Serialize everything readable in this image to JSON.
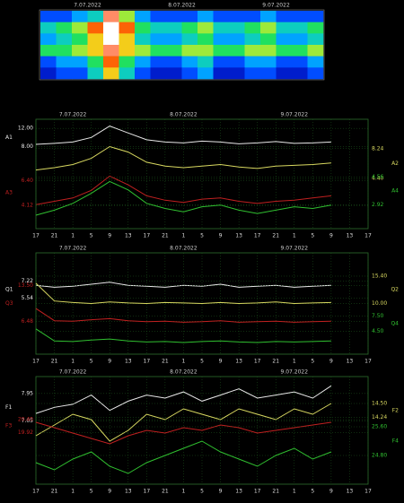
{
  "chart_data": [
    {
      "type": "heatmap",
      "dates": [
        "7.07.2022",
        "8.07.2022",
        "9.07.2022"
      ],
      "zlim": [
        0,
        10
      ],
      "colors": [
        "#000080",
        "#0030ff",
        "#00c0ff",
        "#20e060",
        "#f0f020",
        "#ff4000",
        "#ffffff"
      ],
      "z": [
        [
          2,
          2,
          3,
          4,
          9,
          6,
          3,
          2,
          2,
          2,
          3,
          2,
          2,
          2,
          3,
          2,
          2,
          2
        ],
        [
          4,
          5,
          6,
          8,
          10,
          8,
          5,
          4,
          4,
          5,
          6,
          4,
          4,
          5,
          6,
          4,
          4,
          5
        ],
        [
          3,
          4,
          5,
          7,
          10,
          7,
          4,
          3,
          3,
          4,
          5,
          3,
          3,
          4,
          5,
          3,
          3,
          4
        ],
        [
          5,
          5,
          6,
          7,
          9,
          7,
          6,
          5,
          5,
          6,
          6,
          5,
          5,
          6,
          6,
          5,
          5,
          6
        ],
        [
          2,
          3,
          3,
          5,
          8,
          5,
          3,
          2,
          2,
          3,
          4,
          2,
          2,
          3,
          3,
          2,
          2,
          3
        ],
        [
          1,
          2,
          2,
          4,
          7,
          4,
          2,
          1,
          1,
          2,
          3,
          1,
          1,
          2,
          2,
          1,
          1,
          2
        ]
      ]
    },
    {
      "type": "line",
      "grid": true,
      "dates": [
        "7.07.2022",
        "8.07.2022",
        "9.07.2022"
      ],
      "categories": [
        17,
        21,
        1,
        5,
        9,
        13,
        17,
        21,
        1,
        5,
        9,
        13,
        17,
        21,
        1,
        5,
        9,
        13,
        17
      ],
      "series": [
        {
          "name": "A1",
          "color": "#e8e8e8",
          "ylim": [
            -10,
            14
          ],
          "yticks": [
            {
              "value": 8,
              "label": "8.00"
            },
            {
              "value": 12,
              "label": "12.00"
            }
          ],
          "values": [
            8.5,
            8.7,
            9,
            10,
            12.5,
            11,
            9.5,
            9,
            8.8,
            9.2,
            9,
            8.6,
            8.8,
            9.1,
            8.7,
            8.8,
            9,
            null,
            null
          ]
        },
        {
          "name": "A2",
          "color": "#d8d860",
          "ylim": [
            -2,
            12
          ],
          "yticks": [
            {
              "value": 4.4,
              "label": "4.40"
            },
            {
              "value": 8.24,
              "label": "8.24"
            }
          ],
          "values": [
            5.5,
            5.8,
            6.2,
            7,
            8.5,
            7.8,
            6.5,
            6,
            5.8,
            6,
            6.2,
            5.9,
            5.7,
            6,
            6.1,
            6.2,
            6.4,
            null,
            null
          ]
        },
        {
          "name": "A3",
          "color": "#c02020",
          "ylim": [
            2,
            12
          ],
          "yticks": [
            {
              "value": 4.12,
              "label": "4.12"
            },
            {
              "value": 6.4,
              "label": "6.40"
            }
          ],
          "values": [
            4.2,
            4.5,
            4.8,
            5.5,
            6.8,
            6,
            5,
            4.6,
            4.4,
            4.7,
            4.8,
            4.5,
            4.3,
            4.5,
            4.6,
            4.8,
            5,
            null,
            null
          ]
        },
        {
          "name": "A4",
          "color": "#30c030",
          "ylim": [
            1.5,
            8
          ],
          "yticks": [
            {
              "value": 2.92,
              "label": "2.92"
            },
            {
              "value": 4.56,
              "label": "4.56"
            }
          ],
          "values": [
            2.3,
            2.6,
            3,
            3.6,
            4.3,
            3.8,
            3,
            2.7,
            2.5,
            2.8,
            2.9,
            2.6,
            2.4,
            2.6,
            2.8,
            2.7,
            2.9,
            null,
            null
          ]
        }
      ]
    },
    {
      "type": "line",
      "grid": true,
      "dates": [
        "7.07.2022",
        "8.07.2022",
        "9.07.2022"
      ],
      "categories": [
        17,
        21,
        1,
        5,
        9,
        13,
        17,
        21,
        1,
        5,
        9,
        13,
        17,
        21,
        1,
        5,
        9,
        13,
        17
      ],
      "series": [
        {
          "name": "Q1",
          "color": "#e8e8e8",
          "ylim": [
            0,
            10
          ],
          "yticks": [
            {
              "value": 5.54,
              "label": "5.54"
            },
            {
              "value": 7.22,
              "label": "7.22"
            }
          ],
          "values": [
            6.8,
            6.6,
            6.7,
            6.9,
            7.1,
            6.8,
            6.7,
            6.6,
            6.8,
            6.7,
            6.9,
            6.6,
            6.7,
            6.8,
            6.6,
            6.7,
            6.8,
            null,
            null
          ]
        },
        {
          "name": "Q2",
          "color": "#d8d860",
          "ylim": [
            0,
            20
          ],
          "yticks": [
            {
              "value": 10,
              "label": "10.00"
            },
            {
              "value": 15.4,
              "label": "15.40"
            }
          ],
          "values": [
            14,
            10.5,
            10.2,
            10,
            10.3,
            10.1,
            10,
            10.2,
            10.1,
            10,
            10.2,
            10,
            10.1,
            10.3,
            10,
            10.1,
            10.2,
            null,
            null
          ]
        },
        {
          "name": "Q3",
          "color": "#c02020",
          "ylim": [
            0,
            20
          ],
          "yticks": [
            {
              "value": 6.48,
              "label": "6.48"
            },
            {
              "value": 13.5,
              "label": "13.50"
            }
          ],
          "values": [
            9,
            6.6,
            6.5,
            6.8,
            7,
            6.6,
            6.4,
            6.5,
            6.3,
            6.4,
            6.6,
            6.3,
            6.4,
            6.5,
            6.3,
            6.4,
            6.5,
            null,
            null
          ]
        },
        {
          "name": "Q4",
          "color": "#30c030",
          "ylim": [
            0,
            20
          ],
          "yticks": [
            {
              "value": 4.5,
              "label": "4.50"
            },
            {
              "value": 7.5,
              "label": "7.50"
            }
          ],
          "values": [
            5,
            2.6,
            2.5,
            2.8,
            3,
            2.6,
            2.4,
            2.5,
            2.3,
            2.5,
            2.6,
            2.4,
            2.3,
            2.5,
            2.4,
            2.5,
            2.6,
            null,
            null
          ]
        }
      ]
    },
    {
      "type": "line",
      "grid": true,
      "dates": [
        "7.07.2022",
        "8.07.2022",
        "9.07.2022"
      ],
      "categories": [
        17,
        21,
        1,
        5,
        9,
        13,
        17,
        21,
        1,
        5,
        9,
        13,
        17,
        21,
        1,
        5,
        9,
        13,
        17
      ],
      "series": [
        {
          "name": "F1",
          "color": "#e8e8e8",
          "ylim": [
            5,
            8.5
          ],
          "yticks": [
            {
              "value": 7.05,
              "label": "7.05"
            },
            {
              "value": 7.95,
              "label": "7.95"
            }
          ],
          "values": [
            7.3,
            7.5,
            7.6,
            7.9,
            7.4,
            7.7,
            7.9,
            7.8,
            8,
            7.7,
            7.9,
            8.1,
            7.8,
            7.9,
            8,
            7.8,
            8.2,
            null,
            null
          ]
        },
        {
          "name": "F2",
          "color": "#d8d860",
          "ylim": [
            13,
            15
          ],
          "yticks": [
            {
              "value": 14.24,
              "label": "14.24"
            },
            {
              "value": 14.5,
              "label": "14.50"
            }
          ],
          "values": [
            13.9,
            14.1,
            14.3,
            14.2,
            13.8,
            14,
            14.3,
            14.2,
            14.4,
            14.3,
            14.2,
            14.4,
            14.3,
            14.2,
            14.4,
            14.3,
            14.5,
            null,
            null
          ]
        },
        {
          "name": "F3",
          "color": "#c02020",
          "ylim": [
            18,
            22
          ],
          "yticks": [
            {
              "value": 19.92,
              "label": "19.92"
            },
            {
              "value": 20.4,
              "label": "20.40"
            }
          ],
          "values": [
            20.3,
            20.1,
            19.9,
            19.7,
            19.5,
            19.8,
            20,
            19.9,
            20.1,
            20,
            20.2,
            20.1,
            19.9,
            20,
            20.1,
            20.2,
            20.3,
            null,
            null
          ]
        },
        {
          "name": "F4",
          "color": "#30c030",
          "ylim": [
            24,
            27
          ],
          "yticks": [
            {
              "value": 24.8,
              "label": "24.80"
            },
            {
              "value": 25.6,
              "label": "25.60"
            }
          ],
          "values": [
            24.6,
            24.4,
            24.7,
            24.9,
            24.5,
            24.3,
            24.6,
            24.8,
            25,
            25.2,
            24.9,
            24.7,
            24.5,
            24.8,
            25,
            24.7,
            24.9,
            null,
            null
          ]
        }
      ]
    }
  ]
}
